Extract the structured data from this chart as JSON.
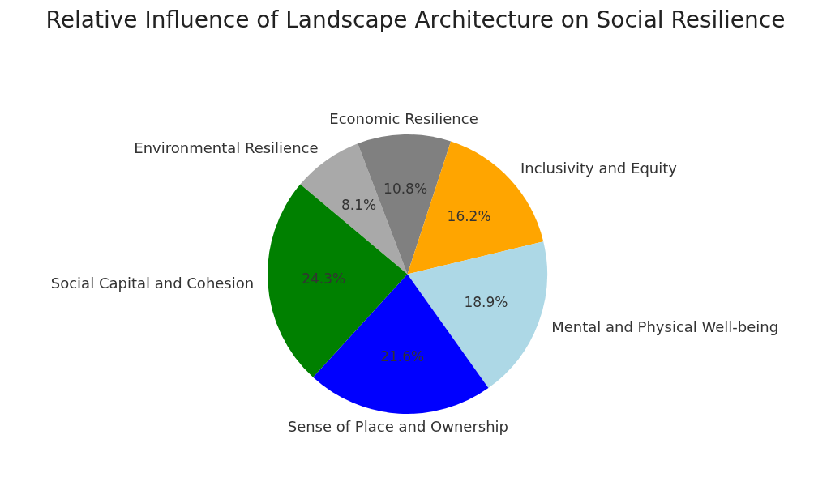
{
  "chart_data": {
    "type": "pie",
    "title": "Relative Influence of Landscape Architecture on Social Resilience",
    "categories": [
      "Environmental Resilience",
      "Economic Resilience",
      "Inclusivity and Equity",
      "Mental and Physical Well-being",
      "Sense of Place and Ownership",
      "Social Capital and Cohesion"
    ],
    "values": [
      8.1,
      10.8,
      16.2,
      18.9,
      21.6,
      24.3
    ],
    "colors": [
      "#a9a9a9",
      "#808080",
      "#ffa500",
      "#add8e6",
      "#0000ff",
      "#008000"
    ],
    "value_labels": [
      "8.1%",
      "10.8%",
      "16.2%",
      "18.9%",
      "21.6%",
      "24.3%"
    ],
    "legend": false
  }
}
